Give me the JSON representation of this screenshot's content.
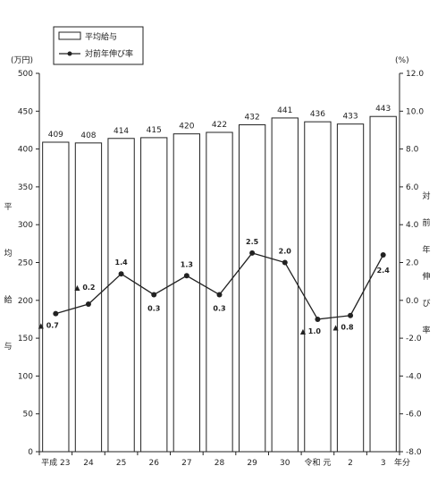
{
  "chart_data": {
    "type": "bar+line",
    "categories": [
      "平成 23",
      "24",
      "25",
      "26",
      "27",
      "28",
      "29",
      "30",
      "令和 元",
      "2",
      "3"
    ],
    "x_axis_suffix": "年分",
    "bar_series": {
      "name": "平均給与",
      "unit": "(万円)",
      "values": [
        409,
        408,
        414,
        415,
        420,
        422,
        432,
        441,
        436,
        433,
        443
      ],
      "ylim": [
        0,
        500
      ],
      "yticks": [
        0,
        50,
        100,
        150,
        200,
        250,
        300,
        350,
        400,
        450,
        500
      ],
      "axis_label": "平均給与"
    },
    "line_series": {
      "name": "対前年伸び率",
      "unit": "(%)",
      "values": [
        -0.7,
        -0.2,
        1.4,
        0.3,
        1.3,
        0.3,
        2.5,
        2.0,
        -1.0,
        -0.8,
        2.4
      ],
      "labels": [
        "▲ 0.7",
        "▲ 0.2",
        "1.4",
        "0.3",
        "1.3",
        "0.3",
        "2.5",
        "2.0",
        "▲ 1.0",
        "▲ 0.8",
        "2.4"
      ],
      "ylim": [
        -8.0,
        12.0
      ],
      "yticks": [
        "-8.0",
        "-6.0",
        "-4.0",
        "-2.0",
        "0.0",
        "2.0",
        "4.0",
        "6.0",
        "8.0",
        "10.0",
        "12.0"
      ],
      "axis_label": "対前年伸び率"
    },
    "legend": {
      "placement": "top-left"
    },
    "grid": false
  }
}
